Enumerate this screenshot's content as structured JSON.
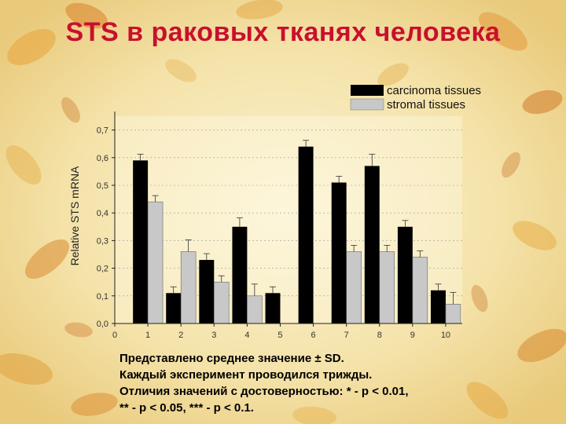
{
  "slide": {
    "title": "STS в раковых тканях человека"
  },
  "chart_data": {
    "type": "bar",
    "ylabel": "Relative STS mRNA",
    "xlim": [
      0,
      10.5
    ],
    "ylim": [
      0,
      0.75
    ],
    "x_ticks": [
      0,
      1,
      2,
      3,
      4,
      5,
      6,
      7,
      8,
      9,
      10
    ],
    "y_ticks": [
      "0.0",
      "0.1",
      "0.2",
      "0.3",
      "0.4",
      "0.5",
      "0.6",
      "0.7"
    ],
    "legend_position": "top-right",
    "colors": {
      "carcinoma": "#000000",
      "stromal": "#c8c8c8"
    },
    "series": [
      {
        "name": "carcinoma tissues",
        "x": [
          1,
          2,
          3,
          4,
          5,
          6,
          7,
          8,
          9,
          10
        ],
        "values": [
          0.59,
          0.11,
          0.23,
          0.35,
          0.11,
          0.64,
          0.51,
          0.57,
          0.35,
          0.12
        ],
        "errors": [
          0.0,
          0.0,
          0.0,
          0.01,
          0.0,
          0.0,
          0.0,
          0.02,
          0.0,
          0.0
        ]
      },
      {
        "name": "stromal tissues",
        "x": [
          1,
          2,
          3,
          4,
          5,
          6,
          7,
          8,
          9,
          10
        ],
        "values": [
          0.44,
          0.26,
          0.15,
          0.1,
          null,
          null,
          0.26,
          0.26,
          0.24,
          0.07
        ],
        "errors": [
          0.0,
          0.02,
          0.0,
          0.02,
          0,
          0,
          0.0,
          0.0,
          0.0,
          0.02
        ]
      }
    ]
  },
  "caption": {
    "line1": "Представлено среднее значение ± SD.",
    "line2": "Каждый эксперимент проводился трижды.",
    "line3": "Отличия значений с достоверностью: * - p < 0.01,",
    "line4": "** - p < 0.05, *** - p < 0.1."
  }
}
